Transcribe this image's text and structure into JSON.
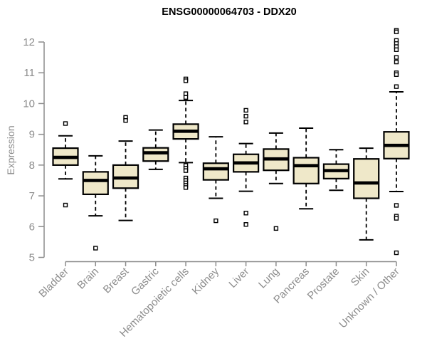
{
  "chart_data": {
    "type": "boxplot",
    "title": "ENSG00000064703 - DDX20",
    "ylabel": "Expression",
    "xlabel": "",
    "ylim": [
      5,
      12.5
    ],
    "yticks": [
      5,
      6,
      7,
      8,
      9,
      10,
      11,
      12
    ],
    "grid": "off",
    "legend": "none",
    "categories": [
      "Bladder",
      "Brain",
      "Breast",
      "Gastric",
      "Hematopoietic cells",
      "Kidney",
      "Liver",
      "Lung",
      "Pancreas",
      "Prostate",
      "Skin",
      "Unknown / Other"
    ],
    "series": [
      {
        "label": "Bladder",
        "whislo": 7.55,
        "q1": 8.0,
        "med": 8.25,
        "q3": 8.55,
        "whishi": 8.95,
        "outliers": [
          9.35,
          6.7
        ]
      },
      {
        "label": "Brain",
        "whislo": 6.35,
        "q1": 7.05,
        "med": 7.5,
        "q3": 7.78,
        "whishi": 8.3,
        "outliers": [
          5.3
        ]
      },
      {
        "label": "Breast",
        "whislo": 6.2,
        "q1": 7.25,
        "med": 7.58,
        "q3": 8.0,
        "whishi": 8.78,
        "outliers": [
          9.55,
          9.45
        ]
      },
      {
        "label": "Gastric",
        "whislo": 7.86,
        "q1": 8.13,
        "med": 8.4,
        "q3": 8.56,
        "whishi": 9.14,
        "outliers": []
      },
      {
        "label": "Hematopoietic cells",
        "whislo": 8.08,
        "q1": 8.85,
        "med": 9.1,
        "q3": 9.33,
        "whishi": 10.1,
        "outliers": [
          10.8,
          10.74,
          10.32,
          10.2,
          7.99,
          7.9,
          7.82,
          7.58,
          7.5,
          7.42,
          7.34,
          7.27
        ]
      },
      {
        "label": "Kidney",
        "whislo": 6.92,
        "q1": 7.52,
        "med": 7.88,
        "q3": 8.06,
        "whishi": 8.92,
        "outliers": [
          6.19
        ]
      },
      {
        "label": "Liver",
        "whislo": 7.15,
        "q1": 7.78,
        "med": 8.07,
        "q3": 8.35,
        "whishi": 8.7,
        "outliers": [
          9.78,
          9.59,
          9.4,
          6.44,
          6.07
        ]
      },
      {
        "label": "Lung",
        "whislo": 7.4,
        "q1": 7.83,
        "med": 8.2,
        "q3": 8.52,
        "whishi": 9.04,
        "outliers": [
          5.94
        ]
      },
      {
        "label": "Pancreas",
        "whislo": 6.58,
        "q1": 7.4,
        "med": 7.98,
        "q3": 8.24,
        "whishi": 9.2,
        "outliers": []
      },
      {
        "label": "Prostate",
        "whislo": 7.18,
        "q1": 7.56,
        "med": 7.82,
        "q3": 8.03,
        "whishi": 8.5,
        "outliers": []
      },
      {
        "label": "Skin",
        "whislo": 5.57,
        "q1": 6.92,
        "med": 7.42,
        "q3": 8.2,
        "whishi": 8.55,
        "outliers": []
      },
      {
        "label": "Unknown / Other",
        "whislo": 7.14,
        "q1": 8.21,
        "med": 8.64,
        "q3": 9.08,
        "whishi": 10.38,
        "outliers": [
          12.38,
          12.33,
          12.05,
          11.95,
          11.85,
          11.75,
          11.5,
          11.35,
          11.0,
          10.94,
          10.55,
          6.69,
          6.34,
          6.27,
          5.15
        ]
      }
    ],
    "colors": {
      "box_fill": "#EFE8C9",
      "box_stroke": "#000000",
      "median": "#000000",
      "whisker": "#000000",
      "outlier_stroke": "#000000",
      "outlier_fill": "#ffffff",
      "axis": "#8c8c8c",
      "tick_label": "#8c8c8c",
      "title": "#000000",
      "background": "#ffffff"
    }
  }
}
